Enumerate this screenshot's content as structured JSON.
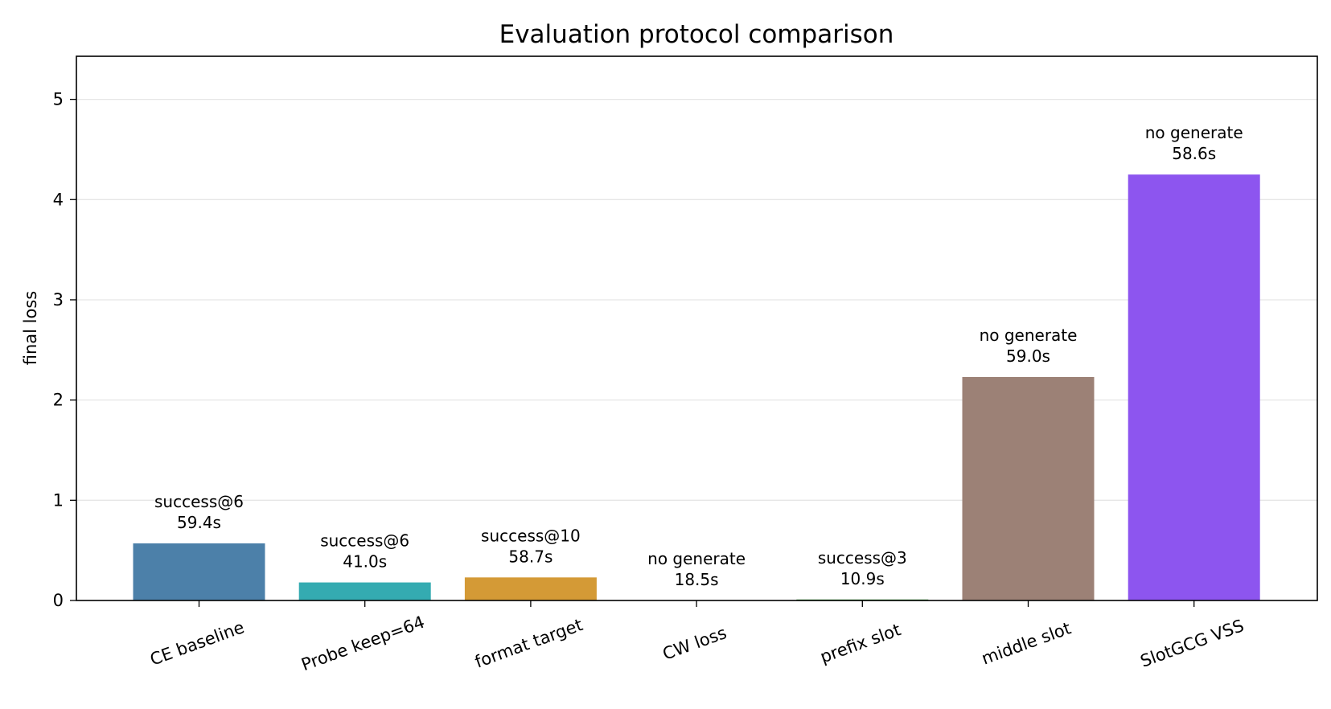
{
  "chart_data": {
    "type": "bar",
    "title": "Evaluation protocol comparison",
    "xlabel": "",
    "ylabel": "final loss",
    "ylim": [
      0,
      5.43
    ],
    "yticks": [
      0,
      1,
      2,
      3,
      4,
      5
    ],
    "grid": "y",
    "legend": "none",
    "categories": [
      "CE baseline",
      "Probe keep=64",
      "format target",
      "CW loss",
      "prefix slot",
      "middle slot",
      "SlotGCG VSS"
    ],
    "values": [
      0.57,
      0.18,
      0.23,
      0.0,
      0.01,
      2.23,
      4.25
    ],
    "colors": [
      "#4c80a9",
      "#34abb1",
      "#d49a36",
      "#7a7a7a",
      "#3d9a3d",
      "#9c8176",
      "#8d55ef"
    ],
    "annotations": [
      [
        "success@6",
        "59.4s"
      ],
      [
        "success@6",
        "41.0s"
      ],
      [
        "success@10",
        "58.7s"
      ],
      [
        "no generate",
        "18.5s"
      ],
      [
        "success@3",
        "10.9s"
      ],
      [
        "no generate",
        "59.0s"
      ],
      [
        "no generate",
        "58.6s"
      ]
    ]
  }
}
